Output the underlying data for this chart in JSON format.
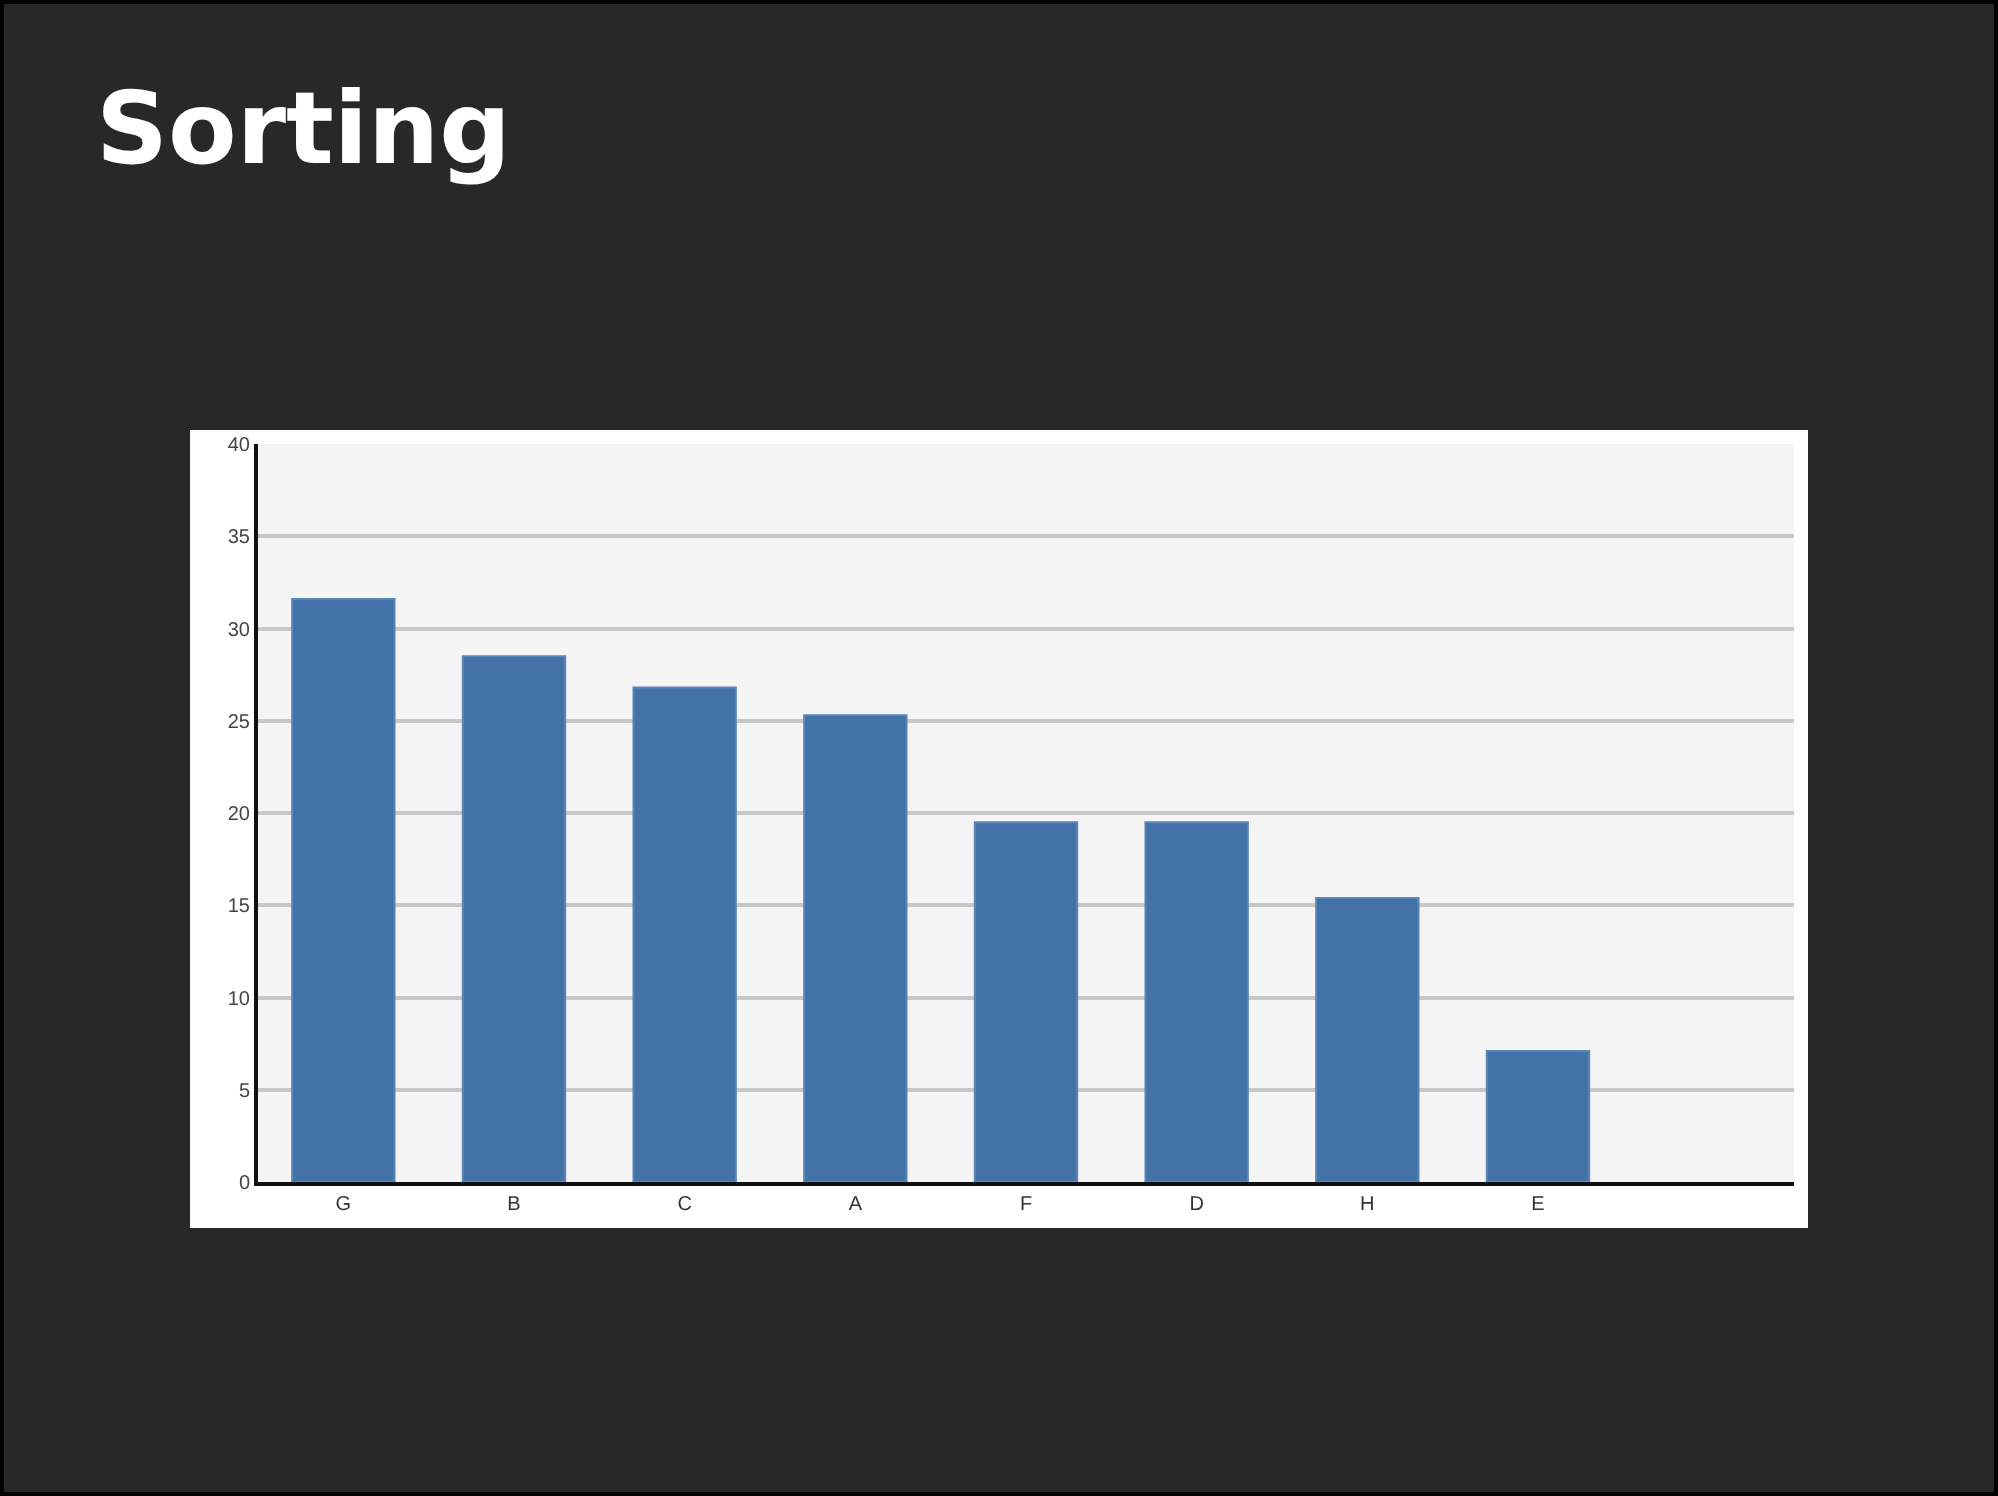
{
  "chart_data": {
    "type": "bar",
    "title": "Sorting",
    "categories": [
      "G",
      "B",
      "C",
      "A",
      "F",
      "D",
      "H",
      "E",
      null
    ],
    "values": [
      31.6,
      28.5,
      26.8,
      25.3,
      19.5,
      19.5,
      15.4,
      7.1,
      null
    ],
    "color": "#4272a8",
    "ylim": [
      0,
      40
    ],
    "yticks": [
      0,
      5,
      10,
      15,
      20,
      25,
      30,
      35,
      40
    ],
    "grid": "y"
  }
}
